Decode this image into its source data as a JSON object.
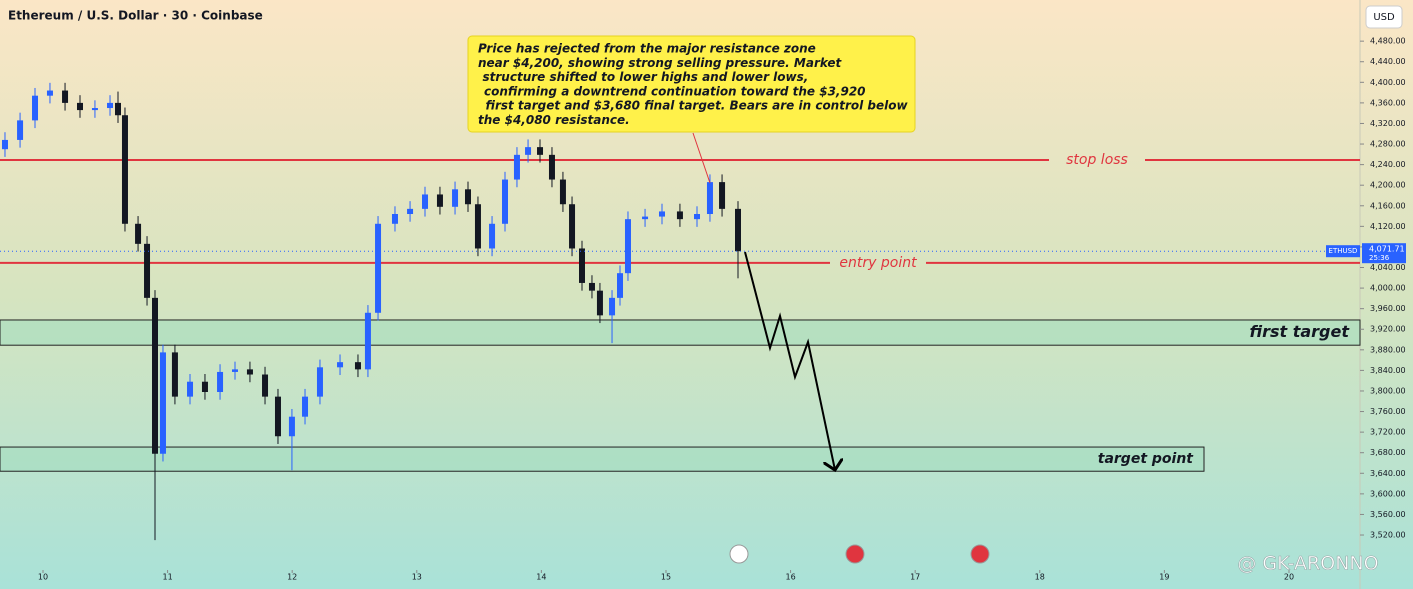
{
  "chart_data": {
    "type": "candlestick",
    "title": "Ethereum / U.S. Dollar · 30 · Coinbase",
    "currency_button": "USD",
    "watermark": "@ GK-ARONNO",
    "xlim": [
      9.655,
      20.57
    ],
    "xticks": [
      10,
      11,
      12,
      13,
      14,
      15,
      16,
      17,
      18,
      19,
      20
    ],
    "ylim": [
      3452,
      4560
    ],
    "yticks": [
      {
        "value": 3520,
        "label": "3,520.00"
      },
      {
        "value": 3560,
        "label": "3,560.00"
      },
      {
        "value": 3600,
        "label": "3,600.00"
      },
      {
        "value": 3640,
        "label": "3,640.00"
      },
      {
        "value": 3680,
        "label": "3,680.00"
      },
      {
        "value": 3720,
        "label": "3,720.00"
      },
      {
        "value": 3760,
        "label": "3,760.00"
      },
      {
        "value": 3800,
        "label": "3,800.00"
      },
      {
        "value": 3840,
        "label": "3,840.00"
      },
      {
        "value": 3880,
        "label": "3,880.00"
      },
      {
        "value": 3920,
        "label": "3,920.00"
      },
      {
        "value": 3960,
        "label": "3,960.00"
      },
      {
        "value": 4000,
        "label": "4,000.00"
      },
      {
        "value": 4040,
        "label": "4,040.00"
      },
      {
        "value": 4080,
        "label": "4,080.00"
      },
      {
        "value": 4120,
        "label": "4,120.00"
      },
      {
        "value": 4160,
        "label": "4,160.00"
      },
      {
        "value": 4200,
        "label": "4,200.00"
      },
      {
        "value": 4240,
        "label": "4,240.00"
      },
      {
        "value": 4280,
        "label": "4,280.00"
      },
      {
        "value": 4320,
        "label": "4,320.00"
      },
      {
        "value": 4360,
        "label": "4,360.00"
      },
      {
        "value": 4400,
        "label": "4,400.00"
      },
      {
        "value": 4440,
        "label": "4,440.00"
      },
      {
        "value": 4480,
        "label": "4,480.00"
      }
    ],
    "up_color": "#2962ff",
    "down_color": "#131722",
    "x": [
      9.695,
      9.816,
      9.936,
      10.056,
      10.177,
      10.297,
      10.417,
      10.538,
      10.602,
      10.658,
      10.763,
      10.835,
      10.899,
      10.963,
      11.059,
      11.18,
      11.3,
      11.421,
      11.541,
      11.661,
      11.782,
      11.886,
      11.998,
      12.103,
      12.223,
      12.384,
      12.528,
      12.608,
      12.689,
      12.825,
      12.946,
      13.066,
      13.186,
      13.307,
      13.411,
      13.491,
      13.604,
      13.708,
      13.804,
      13.893,
      13.989,
      14.085,
      14.173,
      14.246,
      14.326,
      14.406,
      14.47,
      14.567,
      14.631,
      14.695,
      14.832,
      14.968,
      15.112,
      15.249,
      15.353,
      15.45,
      15.578
    ],
    "open": [
      4270,
      4288,
      4326,
      4374,
      4384,
      4360,
      4346,
      4350,
      4360,
      4336,
      4125,
      4086,
      3981,
      3678,
      3875,
      3789,
      3818,
      3798,
      3837,
      3842,
      3832,
      3789,
      3712,
      3750,
      3789,
      3846,
      3856,
      3842,
      3952,
      4125,
      4144,
      4154,
      4182,
      4158,
      4192,
      4163,
      4077,
      4125,
      4211,
      4259,
      4274,
      4259,
      4211,
      4163,
      4077,
      4010,
      3995,
      3947,
      3981,
      4029,
      4134,
      4139,
      4149,
      4134,
      4144,
      4206,
      4154
    ],
    "high": [
      4303,
      4341,
      4389,
      4399,
      4399,
      4375,
      4365,
      4375,
      4382,
      4351,
      4140,
      4101,
      3996,
      3890,
      3890,
      3833,
      3833,
      3852,
      3857,
      3857,
      3847,
      3804,
      3765,
      3804,
      3861,
      3871,
      3871,
      3967,
      4140,
      4159,
      4169,
      4197,
      4197,
      4207,
      4207,
      4178,
      4140,
      4226,
      4274,
      4289,
      4289,
      4274,
      4226,
      4178,
      4092,
      4025,
      4010,
      3996,
      4044,
      4149,
      4154,
      4164,
      4164,
      4159,
      4221,
      4221,
      4169
    ],
    "low": [
      4255,
      4273,
      4311,
      4359,
      4345,
      4331,
      4331,
      4335,
      4321,
      4110,
      4071,
      3966,
      3510,
      3663,
      3774,
      3774,
      3783,
      3783,
      3822,
      3817,
      3774,
      3697,
      3646,
      3735,
      3774,
      3831,
      3827,
      3827,
      3937,
      4110,
      4129,
      4139,
      4143,
      4143,
      4148,
      4062,
      4062,
      4110,
      4196,
      4244,
      4244,
      4196,
      4148,
      4062,
      3995,
      3980,
      3932,
      3893,
      3966,
      4014,
      4119,
      4124,
      4119,
      4119,
      4129,
      4139,
      4019
    ],
    "close": [
      4288,
      4326,
      4374,
      4384,
      4360,
      4346,
      4350,
      4360,
      4336,
      4125,
      4086,
      3981,
      3678,
      3875,
      3789,
      3818,
      3798,
      3837,
      3842,
      3832,
      3789,
      3712,
      3750,
      3789,
      3846,
      3856,
      3842,
      3952,
      4125,
      4144,
      4154,
      4182,
      4158,
      4192,
      4163,
      4077,
      4125,
      4211,
      4259,
      4274,
      4259,
      4211,
      4163,
      4077,
      4010,
      3995,
      3947,
      3981,
      4029,
      4134,
      4139,
      4149,
      4134,
      4144,
      4206,
      4154,
      4071.71
    ],
    "price_label": {
      "symbol": "ETHUSD",
      "value": 4071.71,
      "label": "4,071.71",
      "countdown": "25:36"
    },
    "levels": [
      {
        "label": "stop loss",
        "value": 4249,
        "color": "#e0353f"
      },
      {
        "label": "entry point",
        "value": 4049,
        "color": "#e0353f"
      }
    ],
    "zones": [
      {
        "label": "first target",
        "low": 3889,
        "high": 3938
      },
      {
        "label": "target point",
        "low": 3644,
        "high": 3691
      }
    ],
    "annotation": [
      "Price has rejected from the major resistance zone",
      "near $4,200, showing strong selling pressure. Market",
      "structure shifted to lower highs and lower lows,",
      "confirming a downtrend continuation toward the $3,920",
      "first target and $3,680 final target. Bears are in control below",
      "the $4,080 resistance."
    ]
  }
}
